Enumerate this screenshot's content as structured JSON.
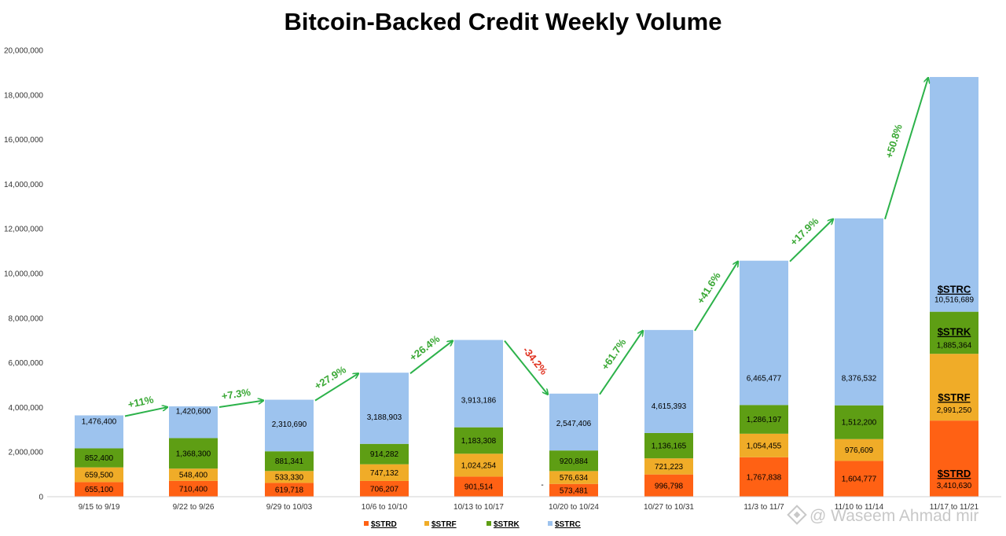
{
  "chart_data": {
    "type": "bar",
    "stacked": true,
    "title": "Bitcoin-Backed Credit Weekly Volume",
    "xlabel": "",
    "ylabel": "",
    "ylim": [
      0,
      20000000
    ],
    "y_ticks": [
      "0",
      "2,000,000",
      "4,000,000",
      "6,000,000",
      "8,000,000",
      "10,000,000",
      "12,000,000",
      "14,000,000",
      "16,000,000",
      "18,000,000",
      "20,000,000"
    ],
    "grid": false,
    "legend_position": "bottom",
    "categories": [
      "9/15 to 9/19",
      "9/22 to 9/26",
      "9/29 to 10/03",
      "10/6 to 10/10",
      "10/13 to 10/17",
      "10/20 to 10/24",
      "10/27 to 10/31",
      "11/3 to 11/7",
      "11/10 to 11/14",
      "11/17 to 11/21"
    ],
    "series": [
      {
        "name": "$STRD",
        "color": "#ff6114",
        "values": [
          655100,
          710400,
          619718,
          706207,
          901514,
          573481,
          996798,
          1767838,
          1604777,
          3410630
        ],
        "labels": [
          "655,100",
          "710,400",
          "619,718",
          "706,207",
          "901,514",
          "573,481",
          "996,798",
          "1,767,838",
          "1,604,777",
          "3,410,630"
        ]
      },
      {
        "name": "$STRF",
        "color": "#f0ac28",
        "values": [
          659500,
          548400,
          533330,
          747132,
          1024254,
          576634,
          721223,
          1054455,
          976609,
          2991250
        ],
        "labels": [
          "659,500",
          "548,400",
          "533,330",
          "747,132",
          "1,024,254",
          "576,634",
          "721,223",
          "1,054,455",
          "976,609",
          "2,991,250"
        ]
      },
      {
        "name": "$STRK",
        "color": "#5e9e14",
        "values": [
          852400,
          1368300,
          881341,
          914282,
          1183308,
          920884,
          1136165,
          1286197,
          1512200,
          1885364
        ],
        "labels": [
          "852,400",
          "1,368,300",
          "881,341",
          "914,282",
          "1,183,308",
          "920,884",
          "1,136,165",
          "1,286,197",
          "1,512,200",
          "1,885,364"
        ]
      },
      {
        "name": "$STRC",
        "color": "#9dc3ee",
        "values": [
          1476400,
          1420600,
          2310690,
          3188903,
          3913186,
          2547406,
          4615393,
          6465477,
          8376532,
          10516689
        ],
        "labels": [
          "1,476,400",
          "1,420,600",
          "2,310,690",
          "3,188,903",
          "3,913,186",
          "2,547,406",
          "4,615,393",
          "6,465,477",
          "8,376,532",
          "10,516,689"
        ]
      }
    ],
    "annotations": [
      {
        "text": "+11%",
        "from": 0,
        "to": 1,
        "color": "#3aa835"
      },
      {
        "text": "+7.3%",
        "from": 1,
        "to": 2,
        "color": "#3aa835"
      },
      {
        "text": "+27.9%",
        "from": 2,
        "to": 3,
        "color": "#3aa835"
      },
      {
        "text": "+26.4%",
        "from": 3,
        "to": 4,
        "color": "#3aa835"
      },
      {
        "text": "-34.2%",
        "from": 4,
        "to": 5,
        "color": "#e0301e"
      },
      {
        "text": "+61.7%",
        "from": 5,
        "to": 6,
        "color": "#3aa835"
      },
      {
        "text": "+41.6%",
        "from": 6,
        "to": 7,
        "color": "#3aa835"
      },
      {
        "text": "+17.9%",
        "from": 7,
        "to": 8,
        "color": "#3aa835"
      },
      {
        "text": "+50.8%",
        "from": 8,
        "to": 9,
        "color": "#3aa835"
      }
    ],
    "series_labels_on_bar": 9,
    "stray_mark": "-"
  },
  "watermark": "@ Waseem Ahmad mir",
  "watermark_icon": "pinwheel-logo-icon"
}
